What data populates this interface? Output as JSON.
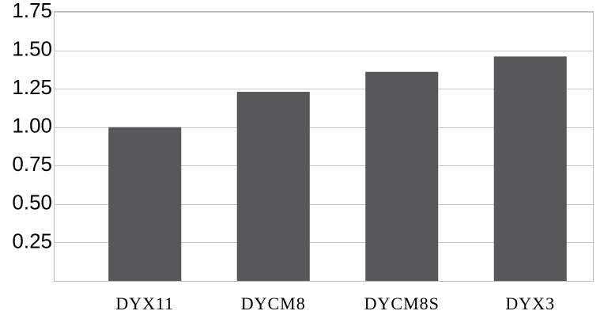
{
  "chart_data": {
    "type": "bar",
    "categories": [
      "DYX11",
      "DYCM8",
      "DYCM8S",
      "DYX3"
    ],
    "values": [
      1.0,
      1.23,
      1.36,
      1.46
    ],
    "color": "#58585a",
    "ylim": [
      0,
      1.75
    ],
    "yticks": [
      0.25,
      {
        "value": 0.5,
        "label": "0.50"
      },
      0.75,
      {
        "value": 1,
        "label": "1.00"
      },
      1.25,
      {
        "value": 1.5,
        "label": "1.50"
      },
      1.75
    ],
    "grid": true
  }
}
